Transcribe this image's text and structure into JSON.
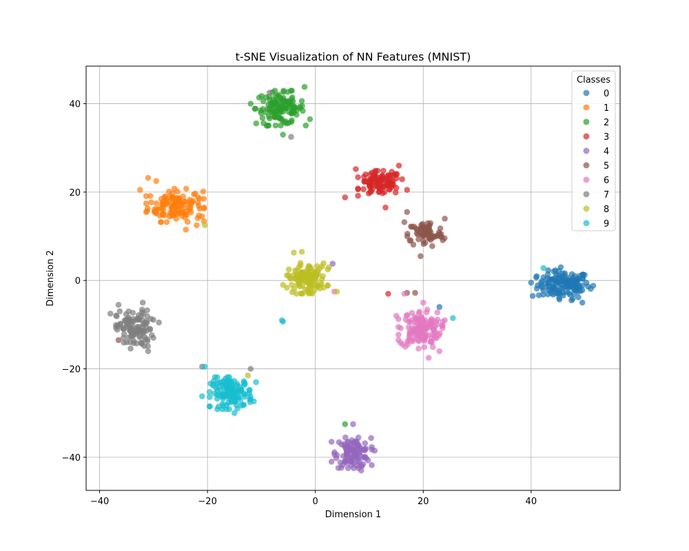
{
  "chart_data": {
    "type": "scatter",
    "title": "t-SNE Visualization of NN Features (MNIST)",
    "xlabel": "Dimension 1",
    "ylabel": "Dimension 2",
    "xlim": [
      -42.5,
      56.5
    ],
    "ylim": [
      -47.5,
      48.5
    ],
    "xticks": [
      -40,
      -20,
      0,
      20,
      40
    ],
    "yticks": [
      -40,
      -20,
      0,
      20,
      40
    ],
    "xtick_labels": [
      "−40",
      "−20",
      "0",
      "20",
      "40"
    ],
    "ytick_labels": [
      "−40",
      "−20",
      "0",
      "20",
      "40"
    ],
    "grid": true,
    "legend": {
      "title": "Classes",
      "placement": "top-right"
    },
    "series": [
      {
        "name": "0",
        "color": "#1f77b4",
        "cluster": {
          "center": [
            46,
            -1
          ],
          "spread": [
            3.2,
            2.1
          ],
          "count": 130
        },
        "points": [
          [
            40,
            -0.5
          ],
          [
            40.3,
            -3.5
          ],
          [
            51.5,
            -1.2
          ],
          [
            49.5,
            -5
          ],
          [
            47.5,
            -4.5
          ],
          [
            45.5,
            3
          ],
          [
            43,
            0.5
          ],
          [
            23,
            -6
          ]
        ]
      },
      {
        "name": "1",
        "color": "#ff7f0e",
        "cluster": {
          "center": [
            -26,
            17
          ],
          "spread": [
            3.4,
            2.4
          ],
          "count": 130
        },
        "points": [
          [
            -31,
            23.2
          ],
          [
            -29.5,
            22.5
          ],
          [
            -32.5,
            20.5
          ],
          [
            -22.5,
            19.5
          ],
          [
            -21.5,
            18.5
          ],
          [
            -24,
            11.5
          ],
          [
            -22,
            12.5
          ],
          [
            -21,
            14.5
          ],
          [
            -29.5,
            16
          ]
        ]
      },
      {
        "name": "2",
        "color": "#2ca02c",
        "cluster": {
          "center": [
            -6.5,
            39
          ],
          "spread": [
            3.0,
            2.5
          ],
          "count": 120
        },
        "points": [
          [
            -2,
            43.8
          ],
          [
            -12,
            40
          ],
          [
            -6,
            33
          ],
          [
            -9,
            35
          ],
          [
            -1,
            36.5
          ],
          [
            -3.5,
            37.5
          ],
          [
            5.5,
            -32.5
          ],
          [
            -5.5,
            36
          ]
        ]
      },
      {
        "name": "3",
        "color": "#d62728",
        "cluster": {
          "center": [
            12,
            22
          ],
          "spread": [
            2.6,
            1.8
          ],
          "count": 100
        },
        "points": [
          [
            15.5,
            26
          ],
          [
            7.5,
            25.2
          ],
          [
            5.5,
            18.8
          ],
          [
            13,
            16.5
          ],
          [
            17,
            20.5
          ],
          [
            13.5,
            -3
          ]
        ]
      },
      {
        "name": "4",
        "color": "#9467bd",
        "cluster": {
          "center": [
            7,
            -39
          ],
          "spread": [
            2.2,
            2.2
          ],
          "count": 100
        },
        "points": [
          [
            7,
            -32.5
          ],
          [
            3,
            -41
          ],
          [
            3,
            -36.5
          ],
          [
            11,
            -38.5
          ],
          [
            8.5,
            -43
          ],
          [
            4,
            -39.5
          ],
          [
            3.2,
            3.8
          ]
        ]
      },
      {
        "name": "5",
        "color": "#8c564b",
        "cluster": {
          "center": [
            20.5,
            10.5
          ],
          "spread": [
            2.2,
            2.0
          ],
          "count": 70
        },
        "points": [
          [
            24,
            14
          ],
          [
            16.5,
            13.2
          ],
          [
            17,
            15.5
          ],
          [
            17.5,
            9
          ],
          [
            23,
            10.5
          ],
          [
            19.5,
            5.5
          ],
          [
            -36.5,
            -13.5
          ],
          [
            17,
            -2.8
          ],
          [
            18.5,
            -2.8
          ]
        ]
      },
      {
        "name": "6",
        "color": "#e377c2",
        "cluster": {
          "center": [
            19.5,
            -11
          ],
          "spread": [
            2.6,
            2.8
          ],
          "count": 130
        },
        "points": [
          [
            16.5,
            -3
          ],
          [
            21,
            -17.5
          ],
          [
            24,
            -9
          ],
          [
            15,
            -8
          ],
          [
            23,
            -16
          ],
          [
            3.5,
            -2.5
          ],
          [
            20,
            -5
          ]
        ]
      },
      {
        "name": "7",
        "color": "#7f7f7f",
        "cluster": {
          "center": [
            -33.5,
            -11
          ],
          "spread": [
            2.2,
            2.8
          ],
          "count": 110
        },
        "points": [
          [
            -38,
            -7.5
          ],
          [
            -36.5,
            -5.5
          ],
          [
            -32,
            -5
          ],
          [
            -31,
            -16
          ],
          [
            -29,
            -9.5
          ],
          [
            -35,
            -14
          ],
          [
            -8.5,
            42.5
          ],
          [
            -4.5,
            32.5
          ],
          [
            -21,
            -19.5
          ],
          [
            -12,
            -20
          ]
        ]
      },
      {
        "name": "8",
        "color": "#bcbd22",
        "cluster": {
          "center": [
            -1.5,
            0.5
          ],
          "spread": [
            2.4,
            2.2
          ],
          "count": 120
        },
        "points": [
          [
            -2.5,
            6.5
          ],
          [
            -4,
            6.3
          ],
          [
            4,
            -2.5
          ],
          [
            -6,
            -1
          ],
          [
            -3.5,
            -3
          ],
          [
            2.5,
            3
          ],
          [
            -20.5,
            12.5
          ],
          [
            -12.5,
            -21.5
          ]
        ]
      },
      {
        "name": "9",
        "color": "#17becf",
        "cluster": {
          "center": [
            -15.5,
            -25.5
          ],
          "spread": [
            2.6,
            2.3
          ],
          "count": 120
        },
        "points": [
          [
            -21,
            -26.2
          ],
          [
            -20.5,
            -19.5
          ],
          [
            -15,
            -30
          ],
          [
            -11,
            -23
          ],
          [
            -18,
            -24
          ],
          [
            -6.2,
            -9
          ],
          [
            -6,
            -9.3
          ],
          [
            25.5,
            -8.5
          ],
          [
            42.3,
            2.8
          ]
        ]
      }
    ]
  }
}
